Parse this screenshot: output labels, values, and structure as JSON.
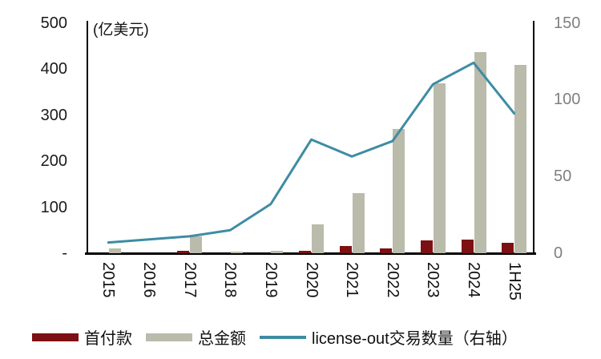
{
  "chart_data": {
    "type": "combo",
    "title": "",
    "categories": [
      "2015",
      "2016",
      "2017",
      "2018",
      "2019",
      "2020",
      "2021",
      "2022",
      "2023",
      "2024",
      "1H25"
    ],
    "series": [
      {
        "name": "首付款",
        "type": "bar",
        "axis": "left",
        "color": "#7D1012",
        "values": [
          0,
          0,
          5,
          0,
          0,
          6,
          15,
          10,
          27,
          30,
          23
        ]
      },
      {
        "name": "总金额",
        "type": "bar",
        "axis": "left",
        "color": "#BABBAB",
        "values": [
          10,
          0,
          36,
          3,
          6,
          62,
          131,
          270,
          369,
          437,
          409
        ]
      },
      {
        "name": "license-out交易数量（右轴）",
        "type": "line",
        "axis": "right",
        "color": "#3E8CA4",
        "values": [
          7,
          9,
          11,
          15,
          32,
          74,
          63,
          73,
          110,
          124,
          91
        ]
      }
    ],
    "left_axis": {
      "unit_label": "(亿美元)",
      "ticks": [
        "500",
        "400",
        "300",
        "200",
        "100",
        "-"
      ],
      "tick_values": [
        500,
        400,
        300,
        200,
        100,
        0
      ],
      "range": [
        0,
        500
      ],
      "label_color": "#1a1a1a"
    },
    "right_axis": {
      "ticks": [
        "150",
        "100",
        "50",
        "0"
      ],
      "tick_values": [
        150,
        100,
        50,
        0
      ],
      "range": [
        0,
        150
      ],
      "label_color": "#7f7f7f"
    },
    "legend": [
      "首付款",
      "总金额",
      "license-out交易数量（右轴）"
    ],
    "grid": false,
    "legend_position": "bottom"
  }
}
